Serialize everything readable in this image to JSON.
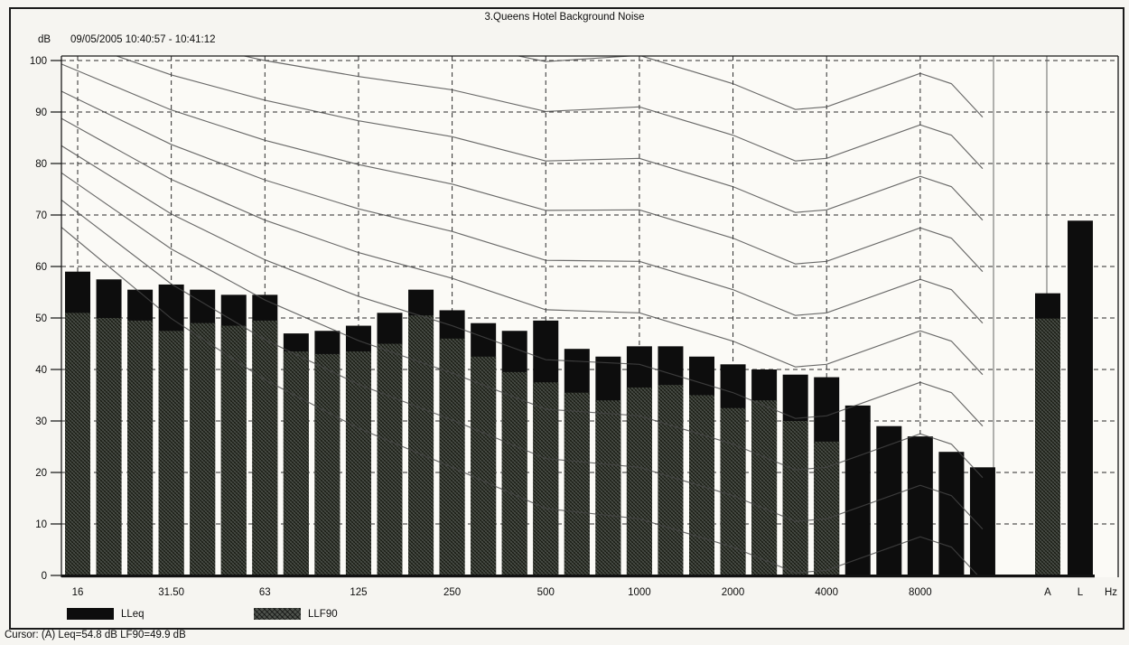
{
  "figure": {
    "title": "3.Queens Hotel Background Noise",
    "y_axis_unit": "dB",
    "time_range": "09/05/2005 10:40:57 - 10:41:12",
    "x_axis_unit": "Hz",
    "cursor_readout": "Cursor: (A)  Leq=54.8 dB  LF90=49.9 dB",
    "legend": [
      {
        "label": "LLeq",
        "style": "solid-black"
      },
      {
        "label": "LLF90",
        "style": "hatched-dark-gray"
      }
    ],
    "colors": {
      "bar_black": "#0d0d0d",
      "hatch_base": "#4e524c",
      "grid_line": "#2b2b2b",
      "curve_line": "#474747",
      "plot_background": "#fbfaf6",
      "page_background": "#f6f5f1"
    }
  },
  "chart_data": {
    "type": "bar",
    "title": "3.Queens Hotel Background Noise",
    "ylabel": "dB",
    "xlabel": "Hz",
    "ylim": [
      0,
      100
    ],
    "y_ticks": [
      0,
      10,
      20,
      30,
      40,
      50,
      60,
      70,
      80,
      90,
      100
    ],
    "grid": true,
    "categories": [
      "16",
      "20",
      "25",
      "31.5",
      "40",
      "50",
      "63",
      "80",
      "100",
      "125",
      "160",
      "200",
      "250",
      "315",
      "400",
      "500",
      "630",
      "800",
      "1000",
      "1250",
      "1600",
      "2000",
      "2500",
      "3150",
      "4000",
      "5000",
      "6300",
      "8000",
      "10000",
      "12500"
    ],
    "x_octave_labels": [
      {
        "text": "16",
        "band_index": 0
      },
      {
        "text": "31.50",
        "band_index": 3
      },
      {
        "text": "63",
        "band_index": 6
      },
      {
        "text": "125",
        "band_index": 9
      },
      {
        "text": "250",
        "band_index": 12
      },
      {
        "text": "500",
        "band_index": 15
      },
      {
        "text": "1000",
        "band_index": 18
      },
      {
        "text": "2000",
        "band_index": 21
      },
      {
        "text": "4000",
        "band_index": 24
      },
      {
        "text": "8000",
        "band_index": 27
      }
    ],
    "series": [
      {
        "name": "LLeq",
        "style": "solid-black",
        "values": [
          59,
          57.5,
          55.5,
          56.5,
          55.5,
          54.5,
          54.5,
          47,
          47.5,
          48.5,
          51,
          55.5,
          51.5,
          49,
          47.5,
          49.5,
          44,
          42.5,
          44.5,
          44.5,
          42.5,
          41,
          40,
          39,
          38.5,
          33,
          29,
          27,
          24,
          21
        ]
      },
      {
        "name": "LLF90",
        "style": "hatched-dark-gray",
        "values": [
          51,
          50,
          49.5,
          47.5,
          49,
          48.5,
          49.5,
          43.5,
          43,
          43.5,
          45,
          50.5,
          46,
          42.5,
          39.5,
          37.5,
          35.5,
          34,
          36.5,
          37,
          35,
          32.5,
          34,
          30,
          26,
          null,
          null,
          null,
          null,
          null
        ]
      }
    ],
    "summary_bars": [
      {
        "label": "A",
        "lleq": 54.8,
        "llf90": 49.9
      },
      {
        "label": "L",
        "lleq": 68.9,
        "llf90": null
      }
    ],
    "overlay_curves": {
      "description": "Family of rating/loudness contour curves, 10 dB apart at 1 kHz, dip near 3150 Hz, local peak near 8000 Hz",
      "x_hz": [
        "16",
        "31.5",
        "63",
        "125",
        "250",
        "500",
        "1000",
        "2000",
        "3150",
        "4000",
        "8000",
        "10000",
        "12500"
      ],
      "levels_at_1k": [
        101,
        91,
        81,
        71,
        61,
        51,
        41,
        31,
        21,
        11
      ],
      "curves": [
        [
          114.5,
          110.7,
          107.8,
          105.4,
          103.5,
          99.8,
          101,
          95.5,
          90.5,
          91,
          97.5,
          95.5,
          89
        ],
        [
          109.0,
          104.0,
          100.0,
          96.9,
          94.3,
          90.1,
          91,
          85.5,
          80.5,
          81,
          87.5,
          85.5,
          79
        ],
        [
          103.5,
          97.2,
          92.3,
          88.3,
          85.2,
          80.5,
          81,
          75.5,
          70.5,
          71,
          77.5,
          75.5,
          69
        ],
        [
          98.0,
          90.4,
          84.5,
          79.8,
          76.0,
          70.9,
          71,
          65.5,
          60.5,
          61,
          67.5,
          65.5,
          59
        ],
        [
          92.5,
          83.7,
          76.8,
          71.2,
          66.8,
          61.2,
          61,
          55.5,
          50.5,
          51,
          57.5,
          55.5,
          49
        ],
        [
          87.0,
          76.9,
          69.0,
          62.7,
          57.7,
          51.6,
          51,
          45.5,
          40.5,
          41,
          47.5,
          45.5,
          39
        ],
        [
          81.5,
          70.2,
          61.3,
          54.2,
          48.5,
          41.9,
          41,
          35.5,
          30.5,
          31,
          37.5,
          35.5,
          29
        ],
        [
          76.0,
          63.4,
          53.5,
          45.6,
          39.3,
          32.3,
          31,
          25.5,
          20.5,
          21,
          27.5,
          25.5,
          19
        ],
        [
          70.5,
          56.6,
          45.8,
          37.1,
          30.2,
          22.7,
          21,
          15.5,
          10.5,
          11,
          17.5,
          15.5,
          9
        ],
        [
          65.0,
          49.9,
          38.0,
          28.6,
          21.0,
          13.0,
          11,
          5.5,
          0.5,
          1,
          7.5,
          5.5,
          -1
        ]
      ]
    }
  }
}
